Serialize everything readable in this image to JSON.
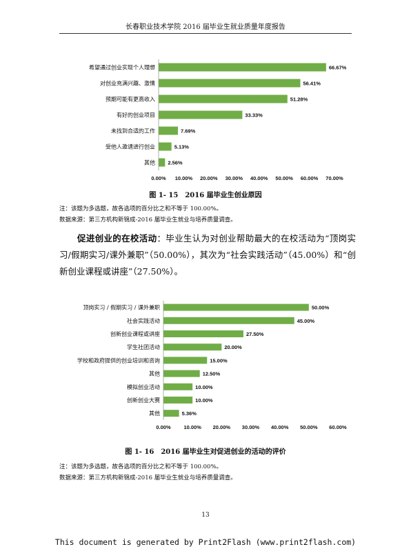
{
  "header": {
    "title": "长春职业技术学院 2016 届毕业生就业质量年度报告"
  },
  "figure1": {
    "caption": "图 1- 15　2016 届毕业生创业原因",
    "note": "注：该题为多选题，故各选项的百分比之和不等于 100.00%。",
    "source": "数据来源：第三方机构新锦成-2016 届毕业生就业与培养质量调查。"
  },
  "paragraph": {
    "lead": "促进创业的在校活动",
    "text": "：毕业生认为对创业帮助最大的在校活动为“顶岗实习/假期实习/课外兼职”（50.00%），其次为“社会实践活动”（45.00%）和“创新创业课程或讲座”（27.50%）。"
  },
  "figure2": {
    "caption": "图 1- 16　2016 届毕业生对促进创业的活动的评价",
    "note": "注：该题为多选题，故各选项的百分比之和不等于 100.00%。",
    "source": "数据来源：第三方机构新锦成-2016 届毕业生就业与培养质量调查。"
  },
  "page_number": "13",
  "footer": "This document is generated by Print2Flash (www.print2flash.com)",
  "chart_data": [
    {
      "type": "bar",
      "orientation": "horizontal",
      "categories": [
        "希望通过创业实现个人理想",
        "对创业充满兴趣、激情",
        "预期可能有更高收入",
        "有好的创业项目",
        "未找到合适的工作",
        "受他人邀请进行创业",
        "其他"
      ],
      "values": [
        66.67,
        56.41,
        51.28,
        33.33,
        7.69,
        5.13,
        2.56
      ],
      "value_labels": [
        "66.67%",
        "56.41%",
        "51.28%",
        "33.33%",
        "7.69%",
        "5.13%",
        "2.56%"
      ],
      "xlim": [
        0,
        70
      ],
      "ticks": [
        0,
        10,
        20,
        30,
        40,
        50,
        60,
        70
      ],
      "tick_labels": [
        "0.00%",
        "10.00%",
        "20.00%",
        "30.00%",
        "40.00%",
        "50.00%",
        "60.00%",
        "70.00%"
      ],
      "bar_color": "#70ad47",
      "grid": false,
      "title": "",
      "xlabel": "",
      "ylabel": ""
    },
    {
      "type": "bar",
      "orientation": "horizontal",
      "categories": [
        "顶岗实习 / 假期实习 / 课外兼职",
        "社会实践活动",
        "创新创业课程或讲座",
        "学生社团活动",
        "学校和政府提供的创业培训和咨询",
        "其他",
        "模拟创业活动",
        "创新创业大赛",
        "其他"
      ],
      "values": [
        50.0,
        45.0,
        27.5,
        20.0,
        15.0,
        12.5,
        10.0,
        10.0,
        5.36
      ],
      "value_labels": [
        "50.00%",
        "45.00%",
        "27.50%",
        "20.00%",
        "15.00%",
        "12.50%",
        "10.00%",
        "10.00%",
        "5.36%"
      ],
      "xlim": [
        0,
        60
      ],
      "ticks": [
        0,
        10,
        20,
        30,
        40,
        50,
        60
      ],
      "tick_labels": [
        "0.00%",
        "10.00%",
        "20.00%",
        "30.00%",
        "40.00%",
        "50.00%",
        "60.00%"
      ],
      "bar_color": "#70ad47",
      "grid": false,
      "title": "",
      "xlabel": "",
      "ylabel": ""
    }
  ]
}
